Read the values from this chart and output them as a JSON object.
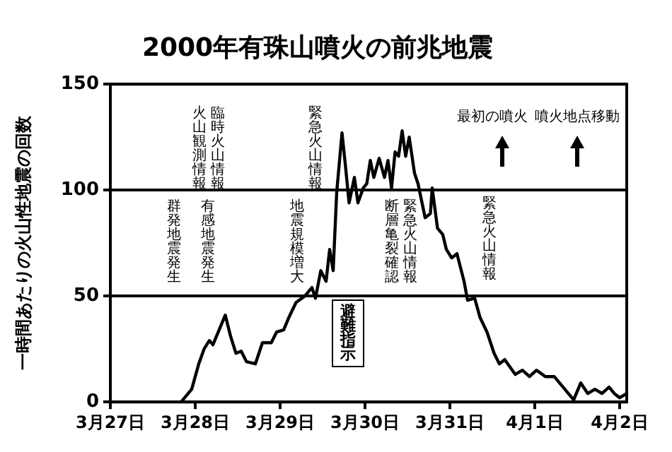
{
  "chart_data": {
    "type": "line",
    "title": "2000年有珠山噴火の前兆地震",
    "ylabel": "一時間あたりの火山性地震の回数",
    "x": [
      "2000-03-27T20:00",
      "2000-03-27T23:00",
      "2000-03-28T01:00",
      "2000-03-28T02:30",
      "2000-03-28T04:00",
      "2000-03-28T05:00",
      "2000-03-28T06:30",
      "2000-03-28T08:30",
      "2000-03-28T10:00",
      "2000-03-28T11:30",
      "2000-03-28T13:00",
      "2000-03-28T14:30",
      "2000-03-28T17:00",
      "2000-03-28T19:00",
      "2000-03-28T21:30",
      "2000-03-28T23:00",
      "2000-03-29T01:00",
      "2000-03-29T02:30",
      "2000-03-29T04:30",
      "2000-03-29T07:00",
      "2000-03-29T09:00",
      "2000-03-29T10:00",
      "2000-03-29T11:30",
      "2000-03-29T13:00",
      "2000-03-29T14:00",
      "2000-03-29T15:00",
      "2000-03-29T16:00",
      "2000-03-29T17:30",
      "2000-03-29T18:30",
      "2000-03-29T19:30",
      "2000-03-29T21:00",
      "2000-03-29T22:00",
      "2000-03-29T23:30",
      "2000-03-30T00:30",
      "2000-03-30T01:30",
      "2000-03-30T02:30",
      "2000-03-30T04:00",
      "2000-03-30T05:30",
      "2000-03-30T06:30",
      "2000-03-30T07:30",
      "2000-03-30T08:30",
      "2000-03-30T09:30",
      "2000-03-30T10:30",
      "2000-03-30T11:30",
      "2000-03-30T12:30",
      "2000-03-30T14:00",
      "2000-03-30T15:00",
      "2000-03-30T17:00",
      "2000-03-30T18:30",
      "2000-03-30T19:00",
      "2000-03-30T20:30",
      "2000-03-30T22:00",
      "2000-03-30T23:00",
      "2000-03-31T00:30",
      "2000-03-31T02:00",
      "2000-03-31T04:00",
      "2000-03-31T05:00",
      "2000-03-31T07:00",
      "2000-03-31T08:30",
      "2000-03-31T10:30",
      "2000-03-31T12:30",
      "2000-03-31T14:00",
      "2000-03-31T15:30",
      "2000-03-31T18:30",
      "2000-03-31T20:30",
      "2000-03-31T22:30",
      "2000-04-01T00:30",
      "2000-04-01T03:00",
      "2000-04-01T05:30",
      "2000-04-01T08:00",
      "2000-04-01T11:00",
      "2000-04-01T13:00",
      "2000-04-01T15:00",
      "2000-04-01T17:00",
      "2000-04-01T19:00",
      "2000-04-01T21:00",
      "2000-04-01T22:30",
      "2000-04-02T00:00",
      "2000-04-02T02:00"
    ],
    "series": [
      {
        "color": "#000000",
        "values": [
          0,
          6,
          18,
          25,
          29,
          27,
          33,
          41,
          31,
          23,
          24,
          19,
          18,
          28,
          28,
          33,
          34,
          40,
          47,
          50,
          54,
          49,
          62,
          57,
          72,
          62,
          99,
          127,
          111,
          94,
          106,
          94,
          101,
          103,
          114,
          106,
          115,
          106,
          114,
          101,
          118,
          116,
          128,
          116,
          125,
          108,
          103,
          87,
          89,
          101,
          82,
          79,
          72,
          68,
          70,
          57,
          48,
          49,
          40,
          33,
          23,
          18,
          20,
          13,
          15,
          12,
          15,
          12,
          12,
          7,
          1,
          9,
          4,
          6,
          4,
          7,
          4,
          2,
          4
        ]
      }
    ],
    "xlim": [
      "2000-03-27",
      "2000-04-02T02:00"
    ],
    "xticks": [
      {
        "value": "2000-03-27",
        "label": "3月27日"
      },
      {
        "value": "2000-03-28",
        "label": "3月28日"
      },
      {
        "value": "2000-03-29",
        "label": "3月29日"
      },
      {
        "value": "2000-03-30",
        "label": "3月30日"
      },
      {
        "value": "2000-03-31",
        "label": "3月31日"
      },
      {
        "value": "2000-04-01",
        "label": "4月1日"
      },
      {
        "value": "2000-04-02",
        "label": "4月2日"
      }
    ],
    "ylim": [
      0,
      150
    ],
    "yticks": [
      0,
      50,
      100,
      150
    ],
    "grid": "y",
    "legend": false,
    "marker": "none",
    "line_style": "solid",
    "annotations": [
      "群発地震発生",
      "有感地震発生",
      "臨時火山情報",
      "火山観測情報",
      "地震規模増大",
      "緊急火山情報",
      "避難指示",
      "緊急火山情報",
      "断層亀裂確認",
      "緊急火山情報",
      "最初の噴火",
      "噴火地点移動"
    ]
  }
}
